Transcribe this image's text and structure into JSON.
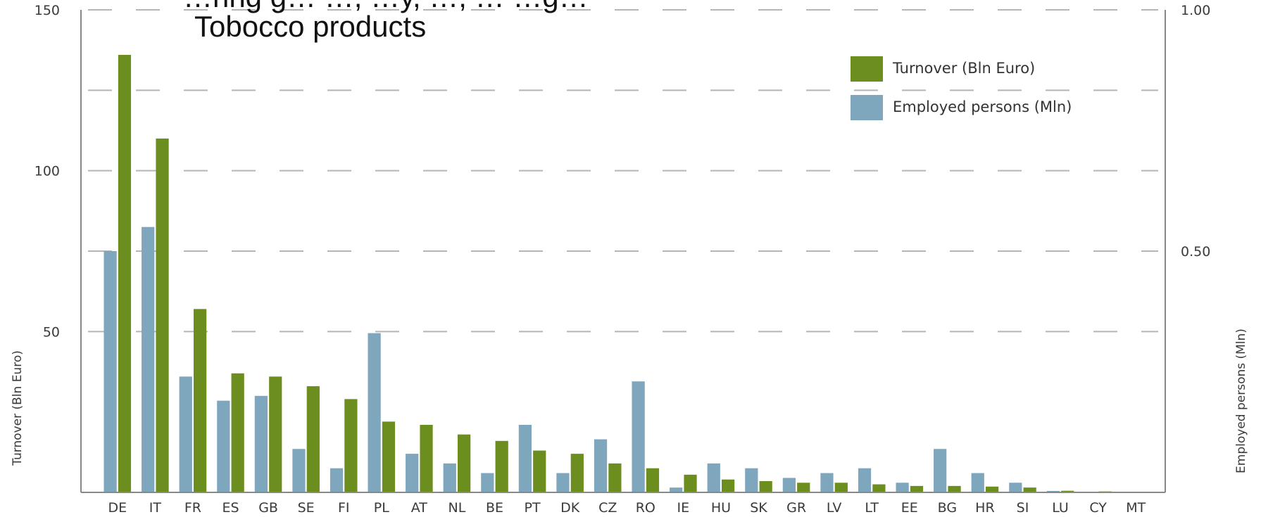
{
  "chart_data": {
    "type": "bar",
    "title_lines": [
      "…ring g…  …, …y, …, … …g…",
      "Tobocco products"
    ],
    "categories": [
      "DE",
      "IT",
      "FR",
      "ES",
      "GB",
      "SE",
      "FI",
      "PL",
      "AT",
      "NL",
      "BE",
      "PT",
      "DK",
      "CZ",
      "RO",
      "IE",
      "HU",
      "SK",
      "GR",
      "LV",
      "LT",
      "EE",
      "BG",
      "HR",
      "SI",
      "LU",
      "CY",
      "MT"
    ],
    "series": [
      {
        "name": "Employed persons (Mln)",
        "axis": "right",
        "color": "#7ea6bd",
        "values": [
          0.5,
          0.55,
          0.24,
          0.19,
          0.2,
          0.09,
          0.05,
          0.33,
          0.08,
          0.06,
          0.04,
          0.14,
          0.04,
          0.11,
          0.23,
          0.01,
          0.06,
          0.05,
          0.03,
          0.04,
          0.05,
          0.02,
          0.09,
          0.04,
          0.02,
          0.003,
          0.001,
          0.001
        ]
      },
      {
        "name": "Turnover (Bln Euro)",
        "axis": "left",
        "color": "#6b8e1e",
        "values": [
          136,
          110,
          57,
          37,
          36,
          33,
          29,
          22,
          21,
          18,
          16,
          13,
          12,
          9,
          7.5,
          5.5,
          4,
          3.5,
          3,
          3,
          2.5,
          2,
          2,
          1.8,
          1.5,
          0.5,
          0.3,
          0.2
        ]
      }
    ],
    "left_axis": {
      "label": "Turnover (Bln Euro)",
      "ylim": [
        0,
        150
      ],
      "ticks": [
        "50",
        "100",
        "150"
      ],
      "tick_values": [
        50,
        100,
        150
      ]
    },
    "right_axis": {
      "label": "Employed persons (Mln)",
      "ylim": [
        0,
        1.0
      ],
      "ticks": [
        "0.50",
        "1.00"
      ],
      "tick_values": [
        0.5,
        1.0
      ]
    },
    "grid": {
      "style": "dashed",
      "values": [
        50,
        75,
        100,
        125,
        150
      ]
    },
    "legend": {
      "position": "top-right"
    }
  }
}
